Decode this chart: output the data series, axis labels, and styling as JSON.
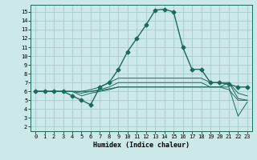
{
  "xlabel": "Humidex (Indice chaleur)",
  "background_color": "#cce8e8",
  "grid_color": "#aacccc",
  "line_color": "#1a6b5a",
  "xlim": [
    -0.5,
    23.5
  ],
  "ylim": [
    1.5,
    15.8
  ],
  "yticks": [
    2,
    3,
    4,
    5,
    6,
    7,
    8,
    9,
    10,
    11,
    12,
    13,
    14,
    15
  ],
  "xticks": [
    0,
    1,
    2,
    3,
    4,
    5,
    6,
    7,
    8,
    9,
    10,
    11,
    12,
    13,
    14,
    15,
    16,
    17,
    18,
    19,
    20,
    21,
    22,
    23
  ],
  "series": [
    {
      "x": [
        0,
        1,
        2,
        3,
        4,
        5,
        6,
        7,
        8,
        9,
        10,
        11,
        12,
        13,
        14,
        15,
        16,
        17,
        18,
        19,
        20,
        21,
        22,
        23
      ],
      "y": [
        6,
        6,
        6,
        6,
        5.5,
        5.0,
        4.5,
        6.5,
        7.0,
        8.5,
        10.5,
        12.0,
        13.5,
        15.2,
        15.3,
        15.0,
        11.0,
        8.5,
        8.5,
        7.0,
        7.0,
        6.8,
        6.5,
        6.5
      ],
      "marker": "D",
      "markersize": 2.5,
      "linewidth": 1.0
    },
    {
      "x": [
        0,
        1,
        2,
        3,
        4,
        5,
        6,
        7,
        8,
        9,
        10,
        11,
        12,
        13,
        14,
        15,
        16,
        17,
        18,
        19,
        20,
        21,
        22,
        23
      ],
      "y": [
        6,
        6,
        6,
        6,
        6.0,
        5.5,
        5.8,
        6.0,
        6.2,
        6.5,
        6.5,
        6.5,
        6.5,
        6.5,
        6.5,
        6.5,
        6.5,
        6.5,
        6.5,
        6.5,
        6.5,
        6.5,
        3.2,
        4.8
      ],
      "marker": null,
      "linewidth": 0.7
    },
    {
      "x": [
        0,
        1,
        2,
        3,
        4,
        5,
        6,
        7,
        8,
        9,
        10,
        11,
        12,
        13,
        14,
        15,
        16,
        17,
        18,
        19,
        20,
        21,
        22,
        23
      ],
      "y": [
        6,
        6,
        6,
        6,
        6.0,
        5.8,
        6.0,
        6.1,
        6.3,
        6.5,
        6.5,
        6.5,
        6.5,
        6.5,
        6.5,
        6.5,
        6.5,
        6.5,
        6.5,
        6.5,
        6.5,
        6.2,
        5.0,
        5.0
      ],
      "marker": null,
      "linewidth": 0.7
    },
    {
      "x": [
        0,
        1,
        2,
        3,
        4,
        5,
        6,
        7,
        8,
        9,
        10,
        11,
        12,
        13,
        14,
        15,
        16,
        17,
        18,
        19,
        20,
        21,
        22,
        23
      ],
      "y": [
        6,
        6,
        6,
        6,
        6.0,
        6.0,
        6.0,
        6.2,
        6.5,
        7.0,
        7.0,
        7.0,
        7.0,
        7.0,
        7.0,
        7.0,
        7.0,
        7.0,
        7.0,
        6.5,
        6.5,
        7.0,
        5.2,
        5.0
      ],
      "marker": null,
      "linewidth": 0.7
    },
    {
      "x": [
        0,
        1,
        2,
        3,
        4,
        5,
        6,
        7,
        8,
        9,
        10,
        11,
        12,
        13,
        14,
        15,
        16,
        17,
        18,
        19,
        20,
        21,
        22,
        23
      ],
      "y": [
        6,
        6,
        6,
        6,
        6.0,
        6.0,
        6.2,
        6.5,
        7.0,
        7.5,
        7.5,
        7.5,
        7.5,
        7.5,
        7.5,
        7.5,
        7.5,
        7.5,
        7.5,
        7.0,
        7.0,
        7.0,
        5.8,
        5.5
      ],
      "marker": null,
      "linewidth": 0.7
    }
  ]
}
